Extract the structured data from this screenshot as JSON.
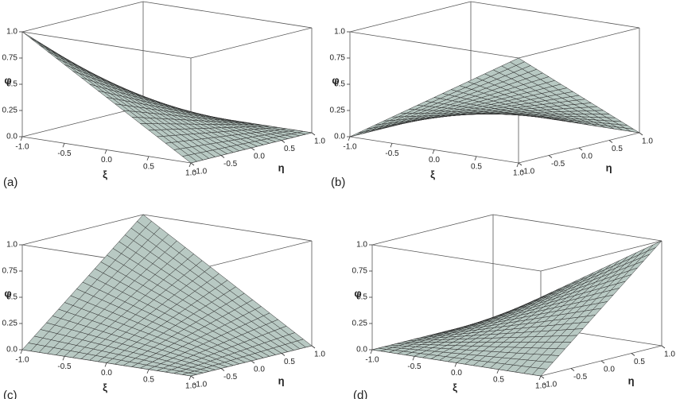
{
  "chart_data": [
    {
      "type": "surface",
      "label": "(a)",
      "xlabel": "ξ",
      "ylabel": "η",
      "zlabel": "φ",
      "x": [
        -1,
        1
      ],
      "y": [
        -1,
        1
      ],
      "z": [
        [
          1,
          0
        ],
        [
          0,
          0
        ]
      ],
      "color": "#b8c9c3",
      "xlim": [
        -1,
        1
      ],
      "ylim": [
        -1,
        1
      ],
      "zlim": [
        0,
        1
      ],
      "xticks": [
        {
          "value": -1,
          "label": "-1.0"
        },
        -0.5,
        {
          "value": 0,
          "label": "0.0"
        },
        0.5,
        {
          "value": 1,
          "label": "1.0"
        }
      ],
      "yticks": [
        {
          "value": -1,
          "label": "-1.0"
        },
        -0.5,
        {
          "value": 0,
          "label": "0.0"
        },
        0.5,
        {
          "value": 1,
          "label": "1.0"
        }
      ],
      "zticks": [
        {
          "value": 0,
          "label": "0.0"
        },
        0.25,
        0.5,
        0.75,
        {
          "value": 1,
          "label": "1.0"
        }
      ]
    },
    {
      "type": "surface",
      "label": "(b)",
      "xlabel": "ξ",
      "ylabel": "η",
      "zlabel": "φ",
      "x": [
        -1,
        1
      ],
      "y": [
        -1,
        1
      ],
      "z": [
        [
          0,
          0
        ],
        [
          1,
          0
        ]
      ],
      "color": "#b8c9c3",
      "xlim": [
        -1,
        1
      ],
      "ylim": [
        -1,
        1
      ],
      "zlim": [
        0,
        1
      ],
      "xticks": [
        {
          "value": -1,
          "label": "-1.0"
        },
        -0.5,
        {
          "value": 0,
          "label": "0.0"
        },
        0.5,
        {
          "value": 1,
          "label": "1.0"
        }
      ],
      "yticks": [
        {
          "value": -1,
          "label": "-1.0"
        },
        -0.5,
        {
          "value": 0,
          "label": "0.0"
        },
        0.5,
        {
          "value": 1,
          "label": "1.0"
        }
      ],
      "zticks": [
        {
          "value": 0,
          "label": "0.0"
        },
        0.25,
        0.5,
        0.75,
        {
          "value": 1,
          "label": "1.0"
        }
      ]
    },
    {
      "type": "surface",
      "label": "(c)",
      "xlabel": "ξ",
      "ylabel": "η",
      "zlabel": "φ",
      "x": [
        -1,
        1
      ],
      "y": [
        -1,
        1
      ],
      "z": [
        [
          0,
          1
        ],
        [
          0,
          0
        ]
      ],
      "color": "#b8c9c3",
      "xlim": [
        -1,
        1
      ],
      "ylim": [
        -1,
        1
      ],
      "zlim": [
        0,
        1
      ],
      "xticks": [
        {
          "value": -1,
          "label": "-1.0"
        },
        -0.5,
        {
          "value": 0,
          "label": "0.0"
        },
        0.5,
        {
          "value": 1,
          "label": "1.0"
        }
      ],
      "yticks": [
        {
          "value": -1,
          "label": "-1.0"
        },
        -0.5,
        {
          "value": 0,
          "label": "0.0"
        },
        0.5,
        {
          "value": 1,
          "label": "1.0"
        }
      ],
      "zticks": [
        {
          "value": 0,
          "label": "0.0"
        },
        0.25,
        0.5,
        0.75,
        {
          "value": 1,
          "label": "1.0"
        }
      ]
    },
    {
      "type": "surface",
      "label": "(d)",
      "xlabel": "ξ",
      "ylabel": "η",
      "zlabel": "φ",
      "x": [
        -1,
        1
      ],
      "y": [
        -1,
        1
      ],
      "z": [
        [
          0,
          0
        ],
        [
          0,
          1
        ]
      ],
      "color": "#b8c9c3",
      "xlim": [
        -1,
        1
      ],
      "ylim": [
        -1,
        1
      ],
      "zlim": [
        0,
        1
      ],
      "xticks": [
        {
          "value": -1,
          "label": "-1.0"
        },
        -0.5,
        {
          "value": 0,
          "label": "0.0"
        },
        0.5,
        {
          "value": 1,
          "label": "1.0"
        }
      ],
      "yticks": [
        {
          "value": -1,
          "label": "-1.0"
        },
        -0.5,
        {
          "value": 0,
          "label": "0.0"
        },
        0.5,
        {
          "value": 1,
          "label": "1.0"
        }
      ],
      "zticks": [
        {
          "value": 0,
          "label": "0.0"
        },
        0.25,
        0.5,
        0.75,
        {
          "value": 1,
          "label": "1.0"
        }
      ]
    }
  ]
}
